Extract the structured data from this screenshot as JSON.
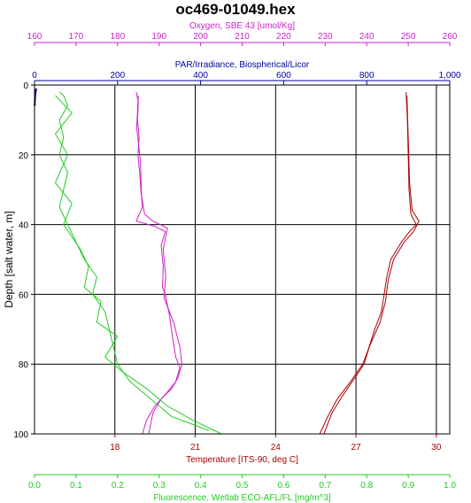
{
  "chart_data": {
    "type": "line",
    "title": "oc469-01049.hex",
    "colors": {
      "oxygen": "#cc22cc",
      "par": "#000099",
      "temperature": "#aa0000",
      "fluorescence": "#22cc22",
      "depth": "#000000"
    },
    "axes": {
      "depth": {
        "label": "Depth [salt water, m]",
        "range": [
          0,
          100
        ],
        "ticks": [
          "0",
          "20",
          "40",
          "60",
          "80",
          "100"
        ],
        "inverted": true
      },
      "oxygen": {
        "label": "Oxygen, SBE 43 [umol/Kg]",
        "range": [
          160,
          260
        ],
        "ticks": [
          "160",
          "170",
          "180",
          "190",
          "200",
          "210",
          "220",
          "230",
          "240",
          "250",
          "260"
        ],
        "position": "top"
      },
      "par": {
        "label": "PAR/Irradiance, Biospherical/Licor",
        "range": [
          0,
          1000
        ],
        "ticks": [
          "0",
          "200",
          "400",
          "600",
          "800",
          "1,000"
        ],
        "position": "top"
      },
      "temperature": {
        "label": "Temperature [ITS-90, deg C]",
        "range": [
          15,
          30.5
        ],
        "ticks": [
          "18",
          "21",
          "24",
          "27",
          "30"
        ],
        "tick_values": [
          18,
          21,
          24,
          27,
          30
        ],
        "position": "bottom"
      },
      "fluorescence": {
        "label": "Fluorescence, Wetlab ECO-AFL/FL [mg/m^3]",
        "range": [
          0,
          1.0
        ],
        "ticks": [
          "0.0",
          "0.1",
          "0.2",
          "0.3",
          "0.4",
          "0.5",
          "0.6",
          "0.7",
          "0.8",
          "0.9",
          "1.0"
        ],
        "position": "bottom"
      }
    },
    "grid": true,
    "series": [
      {
        "name": "Oxygen",
        "axis": "oxygen",
        "points": [
          [
            184.5,
            2
          ],
          [
            185,
            5
          ],
          [
            184.8,
            10
          ],
          [
            185.2,
            15
          ],
          [
            184.9,
            20
          ],
          [
            185.3,
            25
          ],
          [
            185.6,
            30
          ],
          [
            186,
            35
          ],
          [
            184.5,
            39
          ],
          [
            189,
            40.5
          ],
          [
            191.5,
            42
          ],
          [
            190.5,
            46
          ],
          [
            191,
            52
          ],
          [
            190.8,
            58
          ],
          [
            191.5,
            60
          ],
          [
            192.5,
            66
          ],
          [
            193.2,
            72
          ],
          [
            194,
            78
          ],
          [
            195,
            81
          ],
          [
            194,
            85
          ],
          [
            192,
            88
          ],
          [
            189,
            92
          ],
          [
            187,
            96
          ],
          [
            186,
            100
          ]
        ],
        "points_b": [
          [
            185,
            3
          ],
          [
            184.6,
            12
          ],
          [
            185.5,
            22
          ],
          [
            185.8,
            32
          ],
          [
            186.5,
            37
          ],
          [
            188.5,
            39
          ],
          [
            192,
            41
          ],
          [
            191,
            47
          ],
          [
            191.6,
            55
          ],
          [
            191.2,
            61
          ],
          [
            193.5,
            68
          ],
          [
            195,
            75
          ],
          [
            195.5,
            80
          ],
          [
            194.5,
            84
          ],
          [
            193,
            87
          ],
          [
            190.5,
            90
          ],
          [
            188.5,
            94
          ],
          [
            187.5,
            100
          ]
        ]
      },
      {
        "name": "PAR",
        "axis": "par",
        "points": [
          [
            4,
            1
          ],
          [
            3,
            1.8
          ],
          [
            2,
            2.5
          ],
          [
            1,
            4
          ],
          [
            0.5,
            6
          ]
        ]
      },
      {
        "name": "Temperature",
        "axis": "temperature",
        "points": [
          [
            28.87,
            2
          ],
          [
            28.92,
            10
          ],
          [
            28.95,
            20
          ],
          [
            28.98,
            30
          ],
          [
            29.05,
            37
          ],
          [
            29.25,
            40
          ],
          [
            29.0,
            42
          ],
          [
            28.7,
            45
          ],
          [
            28.3,
            50
          ],
          [
            28.15,
            55
          ],
          [
            28.05,
            60
          ],
          [
            27.95,
            65
          ],
          [
            27.7,
            70
          ],
          [
            27.45,
            76
          ],
          [
            27.25,
            80
          ],
          [
            26.8,
            85
          ],
          [
            26.3,
            90
          ],
          [
            25.95,
            95
          ],
          [
            25.65,
            100
          ]
        ],
        "points_b": [
          [
            28.9,
            3
          ],
          [
            28.95,
            15
          ],
          [
            29.0,
            28
          ],
          [
            29.1,
            36
          ],
          [
            29.35,
            39
          ],
          [
            29.15,
            42
          ],
          [
            28.8,
            45
          ],
          [
            28.4,
            50
          ],
          [
            28.2,
            56
          ],
          [
            28.1,
            62
          ],
          [
            27.9,
            68
          ],
          [
            27.5,
            75
          ],
          [
            27.3,
            80
          ],
          [
            26.95,
            84
          ],
          [
            26.5,
            89
          ],
          [
            26.1,
            94
          ],
          [
            25.8,
            100
          ]
        ]
      },
      {
        "name": "Fluorescence",
        "axis": "fluorescence",
        "points": [
          [
            0.06,
            2
          ],
          [
            0.07,
            3
          ],
          [
            0.08,
            6
          ],
          [
            0.06,
            10
          ],
          [
            0.07,
            15
          ],
          [
            0.06,
            20
          ],
          [
            0.08,
            25
          ],
          [
            0.07,
            30
          ],
          [
            0.06,
            35
          ],
          [
            0.08,
            40
          ],
          [
            0.1,
            45
          ],
          [
            0.12,
            50
          ],
          [
            0.15,
            55
          ],
          [
            0.14,
            60
          ],
          [
            0.17,
            65
          ],
          [
            0.18,
            70
          ],
          [
            0.19,
            75
          ],
          [
            0.2,
            80
          ],
          [
            0.23,
            85
          ],
          [
            0.28,
            90
          ],
          [
            0.33,
            95
          ],
          [
            0.42,
            99
          ]
        ],
        "points_b": [
          [
            0.05,
            3
          ],
          [
            0.09,
            8
          ],
          [
            0.05,
            14
          ],
          [
            0.08,
            20
          ],
          [
            0.05,
            28
          ],
          [
            0.09,
            34
          ],
          [
            0.07,
            40
          ],
          [
            0.11,
            47
          ],
          [
            0.13,
            52
          ],
          [
            0.12,
            58
          ],
          [
            0.16,
            62
          ],
          [
            0.15,
            68
          ],
          [
            0.2,
            72
          ],
          [
            0.17,
            78
          ],
          [
            0.21,
            82
          ],
          [
            0.27,
            87
          ],
          [
            0.32,
            92
          ],
          [
            0.38,
            96
          ],
          [
            0.45,
            100
          ]
        ]
      }
    ]
  }
}
